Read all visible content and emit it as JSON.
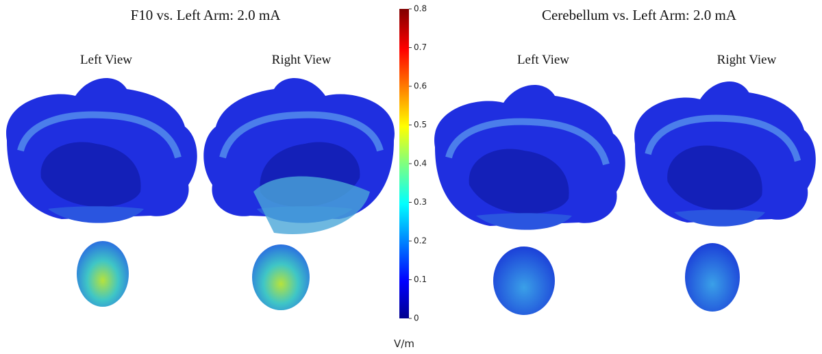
{
  "panels": [
    {
      "title": "F10 vs. Left Arm: 2.0 mA",
      "views": [
        "Left View",
        "Right View"
      ]
    },
    {
      "title": "Cerebellum vs. Left Arm: 2.0 mA",
      "views": [
        "Left View",
        "Right View"
      ]
    }
  ],
  "colorbar": {
    "range": [
      0,
      0.8
    ],
    "ticks": [
      0,
      0.1,
      0.2,
      0.3,
      0.4,
      0.5,
      0.6,
      0.7,
      0.8
    ],
    "unit": "V/m"
  }
}
